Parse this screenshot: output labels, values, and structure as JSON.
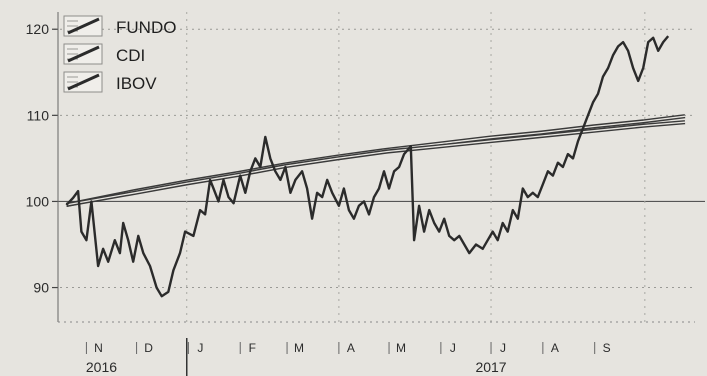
{
  "chart_data": {
    "type": "line",
    "title": "",
    "xlabel": "",
    "ylabel": "",
    "ylim": [
      86,
      122
    ],
    "yticks": [
      90,
      100,
      110,
      120
    ],
    "baseline": 100,
    "grid": "dotted",
    "legend_position": "top-left",
    "x_start": "2016-10-15",
    "x_end": "2017-10-31",
    "months": [
      {
        "label": "N",
        "date": "2016-11-01"
      },
      {
        "label": "D",
        "date": "2016-12-01"
      },
      {
        "label": "J",
        "date": "2017-01-01"
      },
      {
        "label": "F",
        "date": "2017-02-01"
      },
      {
        "label": "M",
        "date": "2017-03-01"
      },
      {
        "label": "A",
        "date": "2017-04-01"
      },
      {
        "label": "M",
        "date": "2017-05-01"
      },
      {
        "label": "J",
        "date": "2017-06-01"
      },
      {
        "label": "J",
        "date": "2017-07-01"
      },
      {
        "label": "A",
        "date": "2017-08-01"
      },
      {
        "label": "S",
        "date": "2017-09-01"
      }
    ],
    "years": [
      {
        "label": "2016",
        "date": "2016-11-10"
      },
      {
        "label": "2017",
        "date": "2017-07-01"
      }
    ],
    "year_divider": "2016-12-31",
    "series": [
      {
        "name": "FUNDO",
        "style": "double",
        "points": [
          [
            "2016-10-20",
            99.6
          ],
          [
            "2016-11-30",
            101.2
          ],
          [
            "2016-12-31",
            102.3
          ],
          [
            "2017-01-31",
            103.3
          ],
          [
            "2017-02-28",
            104.3
          ],
          [
            "2017-03-31",
            105.2
          ],
          [
            "2017-04-30",
            106.0
          ],
          [
            "2017-05-31",
            106.7
          ],
          [
            "2017-06-30",
            107.4
          ],
          [
            "2017-07-31",
            108.0
          ],
          [
            "2017-08-31",
            108.7
          ],
          [
            "2017-09-30",
            109.3
          ],
          [
            "2017-10-25",
            109.9
          ]
        ]
      },
      {
        "name": "CDI",
        "style": "double",
        "points": [
          [
            "2016-10-20",
            99.6
          ],
          [
            "2016-11-30",
            101.0
          ],
          [
            "2016-12-31",
            102.1
          ],
          [
            "2017-01-31",
            103.1
          ],
          [
            "2017-02-28",
            104.1
          ],
          [
            "2017-03-31",
            105.0
          ],
          [
            "2017-04-30",
            105.8
          ],
          [
            "2017-05-31",
            106.4
          ],
          [
            "2017-06-30",
            107.0
          ],
          [
            "2017-07-31",
            107.6
          ],
          [
            "2017-08-31",
            108.2
          ],
          [
            "2017-09-30",
            108.8
          ],
          [
            "2017-10-25",
            109.2
          ]
        ]
      },
      {
        "name": "IBOV",
        "style": "single",
        "points": [
          [
            "2016-10-20",
            99.6
          ],
          [
            "2016-10-24",
            100.4
          ],
          [
            "2016-10-27",
            101.2
          ],
          [
            "2016-10-29",
            96.5
          ],
          [
            "2016-11-01",
            95.5
          ],
          [
            "2016-11-04",
            100.0
          ],
          [
            "2016-11-08",
            92.5
          ],
          [
            "2016-11-11",
            94.5
          ],
          [
            "2016-11-14",
            93.0
          ],
          [
            "2016-11-18",
            95.5
          ],
          [
            "2016-11-21",
            94.0
          ],
          [
            "2016-11-23",
            97.5
          ],
          [
            "2016-11-26",
            95.5
          ],
          [
            "2016-11-29",
            93.0
          ],
          [
            "2016-12-02",
            96.0
          ],
          [
            "2016-12-05",
            94.0
          ],
          [
            "2016-12-09",
            92.5
          ],
          [
            "2016-12-13",
            90.0
          ],
          [
            "2016-12-16",
            89.0
          ],
          [
            "2016-12-20",
            89.5
          ],
          [
            "2016-12-23",
            92.0
          ],
          [
            "2016-12-27",
            94.0
          ],
          [
            "2016-12-30",
            96.5
          ],
          [
            "2017-01-04",
            96.0
          ],
          [
            "2017-01-08",
            99.0
          ],
          [
            "2017-01-11",
            98.5
          ],
          [
            "2017-01-14",
            102.5
          ],
          [
            "2017-01-16",
            101.5
          ],
          [
            "2017-01-19",
            100.0
          ],
          [
            "2017-01-22",
            102.5
          ],
          [
            "2017-01-25",
            100.5
          ],
          [
            "2017-01-28",
            99.8
          ],
          [
            "2017-02-01",
            103.0
          ],
          [
            "2017-02-04",
            101.0
          ],
          [
            "2017-02-07",
            103.5
          ],
          [
            "2017-02-10",
            105.0
          ],
          [
            "2017-02-13",
            104.0
          ],
          [
            "2017-02-16",
            107.5
          ],
          [
            "2017-02-19",
            105.0
          ],
          [
            "2017-02-22",
            103.5
          ],
          [
            "2017-02-25",
            102.5
          ],
          [
            "2017-02-28",
            104.0
          ],
          [
            "2017-03-03",
            101.0
          ],
          [
            "2017-03-06",
            102.5
          ],
          [
            "2017-03-10",
            103.5
          ],
          [
            "2017-03-13",
            101.5
          ],
          [
            "2017-03-16",
            98.0
          ],
          [
            "2017-03-19",
            101.0
          ],
          [
            "2017-03-22",
            100.5
          ],
          [
            "2017-03-25",
            102.5
          ],
          [
            "2017-03-28",
            101.0
          ],
          [
            "2017-04-01",
            99.5
          ],
          [
            "2017-04-04",
            101.5
          ],
          [
            "2017-04-07",
            99.0
          ],
          [
            "2017-04-10",
            98.0
          ],
          [
            "2017-04-13",
            99.5
          ],
          [
            "2017-04-16",
            100.0
          ],
          [
            "2017-04-19",
            98.5
          ],
          [
            "2017-04-22",
            100.5
          ],
          [
            "2017-04-25",
            101.5
          ],
          [
            "2017-04-28",
            103.5
          ],
          [
            "2017-05-01",
            101.5
          ],
          [
            "2017-05-04",
            103.5
          ],
          [
            "2017-05-07",
            104.0
          ],
          [
            "2017-05-10",
            105.5
          ],
          [
            "2017-05-14",
            106.4
          ],
          [
            "2017-05-16",
            95.5
          ],
          [
            "2017-05-19",
            99.5
          ],
          [
            "2017-05-22",
            96.5
          ],
          [
            "2017-05-25",
            99.0
          ],
          [
            "2017-05-28",
            97.5
          ],
          [
            "2017-05-31",
            96.5
          ],
          [
            "2017-06-03",
            98.0
          ],
          [
            "2017-06-06",
            96.0
          ],
          [
            "2017-06-09",
            95.5
          ],
          [
            "2017-06-12",
            96.0
          ],
          [
            "2017-06-15",
            95.0
          ],
          [
            "2017-06-18",
            94.0
          ],
          [
            "2017-06-22",
            95.0
          ],
          [
            "2017-06-26",
            94.5
          ],
          [
            "2017-06-29",
            95.5
          ],
          [
            "2017-07-02",
            96.5
          ],
          [
            "2017-07-05",
            95.5
          ],
          [
            "2017-07-08",
            97.5
          ],
          [
            "2017-07-11",
            96.5
          ],
          [
            "2017-07-14",
            99.0
          ],
          [
            "2017-07-17",
            98.0
          ],
          [
            "2017-07-20",
            101.5
          ],
          [
            "2017-07-23",
            100.5
          ],
          [
            "2017-07-26",
            101.0
          ],
          [
            "2017-07-29",
            100.5
          ],
          [
            "2017-08-01",
            102.0
          ],
          [
            "2017-08-04",
            103.5
          ],
          [
            "2017-08-07",
            103.0
          ],
          [
            "2017-08-10",
            104.5
          ],
          [
            "2017-08-13",
            104.0
          ],
          [
            "2017-08-16",
            105.5
          ],
          [
            "2017-08-19",
            105.0
          ],
          [
            "2017-08-22",
            107.0
          ],
          [
            "2017-08-25",
            108.5
          ],
          [
            "2017-08-28",
            110.0
          ],
          [
            "2017-08-31",
            111.5
          ],
          [
            "2017-09-03",
            112.5
          ],
          [
            "2017-09-06",
            114.5
          ],
          [
            "2017-09-09",
            115.5
          ],
          [
            "2017-09-12",
            117.0
          ],
          [
            "2017-09-15",
            118.0
          ],
          [
            "2017-09-18",
            118.5
          ],
          [
            "2017-09-21",
            117.5
          ],
          [
            "2017-09-24",
            115.5
          ],
          [
            "2017-09-27",
            114.0
          ],
          [
            "2017-09-30",
            115.5
          ],
          [
            "2017-10-03",
            118.5
          ],
          [
            "2017-10-06",
            119.0
          ],
          [
            "2017-10-09",
            117.5
          ],
          [
            "2017-10-12",
            118.5
          ],
          [
            "2017-10-15",
            119.2
          ]
        ]
      }
    ]
  }
}
